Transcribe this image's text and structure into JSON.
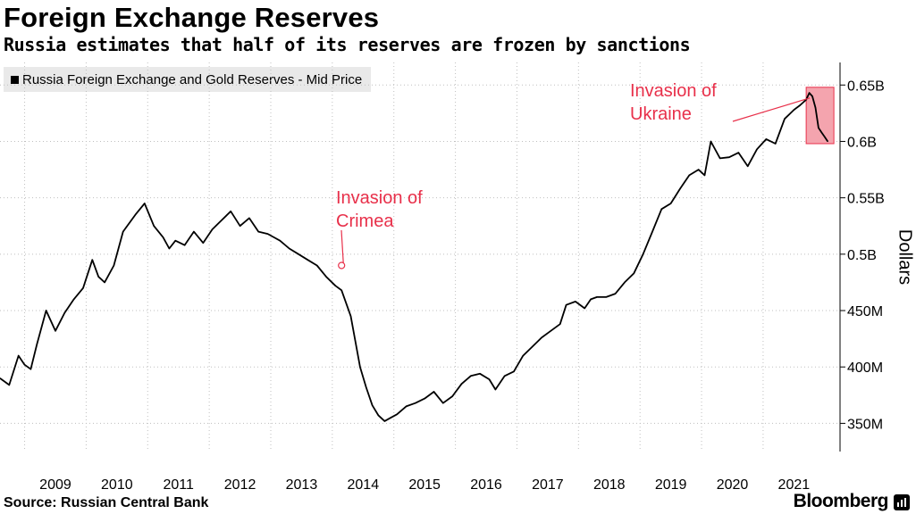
{
  "header": {
    "title": "Foreign Exchange Reserves",
    "subtitle": "Russia estimates that half of its reserves are frozen by sanctions"
  },
  "footer": {
    "source": "Source: Russian Central Bank",
    "brand": "Bloomberg"
  },
  "colors": {
    "line": "#000000",
    "annotation": "#e8304a",
    "highlight_fill": "#f4a4ae",
    "grid": "#bfbfbf",
    "legend_bg": "#e9e9e9"
  },
  "chart_data": {
    "type": "line",
    "title": "Foreign Exchange Reserves",
    "subtitle": "Russia estimates that half of its reserves are frozen by sanctions",
    "ylabel": "Dollars",
    "xlabel": "",
    "ylim": [
      325,
      670
    ],
    "xlim": [
      2008.6,
      2022.25
    ],
    "grid": true,
    "legend": "top-left",
    "x_ticks": [
      2009,
      2010,
      2011,
      2012,
      2013,
      2014,
      2015,
      2016,
      2017,
      2018,
      2019,
      2020,
      2021
    ],
    "x_tick_labels": [
      "2009",
      "2010",
      "2011",
      "2012",
      "2013",
      "2014",
      "2015",
      "2016",
      "2017",
      "2018",
      "2019",
      "2020",
      "2021"
    ],
    "y_ticks": [
      350,
      400,
      450,
      500,
      550,
      600,
      650
    ],
    "y_tick_labels": [
      "350M",
      "400M",
      "450M",
      "0.5B",
      "0.55B",
      "0.6B",
      "0.65B"
    ],
    "series": [
      {
        "name": "Russia Foreign Exchange and Gold Reserves - Mid Price",
        "unit": "million USD",
        "x": [
          2008.6,
          2008.75,
          2008.9,
          2009.0,
          2009.1,
          2009.2,
          2009.35,
          2009.5,
          2009.65,
          2009.8,
          2009.95,
          2010.1,
          2010.2,
          2010.3,
          2010.45,
          2010.6,
          2010.8,
          2010.95,
          2011.1,
          2011.25,
          2011.35,
          2011.45,
          2011.6,
          2011.75,
          2011.9,
          2012.05,
          2012.2,
          2012.35,
          2012.5,
          2012.65,
          2012.8,
          2012.95,
          2013.05,
          2013.15,
          2013.3,
          2013.45,
          2013.6,
          2013.75,
          2013.9,
          2014.05,
          2014.15,
          2014.3,
          2014.45,
          2014.55,
          2014.65,
          2014.75,
          2014.85,
          2014.95,
          2015.05,
          2015.2,
          2015.35,
          2015.5,
          2015.65,
          2015.8,
          2015.95,
          2016.1,
          2016.25,
          2016.4,
          2016.55,
          2016.65,
          2016.8,
          2016.95,
          2017.1,
          2017.25,
          2017.4,
          2017.55,
          2017.7,
          2017.8,
          2017.95,
          2018.1,
          2018.2,
          2018.3,
          2018.45,
          2018.6,
          2018.75,
          2018.9,
          2019.05,
          2019.2,
          2019.35,
          2019.5,
          2019.65,
          2019.8,
          2019.95,
          2020.05,
          2020.15,
          2020.3,
          2020.45,
          2020.6,
          2020.75,
          2020.9,
          2021.05,
          2021.2,
          2021.35,
          2021.5,
          2021.6,
          2021.7,
          2021.75,
          2021.8,
          2021.85,
          2021.9,
          2021.95,
          2022.0,
          2022.05
        ],
        "y": [
          390,
          384,
          410,
          402,
          398,
          420,
          450,
          432,
          448,
          460,
          470,
          495,
          480,
          475,
          490,
          520,
          535,
          545,
          525,
          515,
          505,
          512,
          508,
          520,
          510,
          522,
          530,
          538,
          525,
          532,
          520,
          518,
          515,
          512,
          505,
          500,
          495,
          490,
          480,
          472,
          468,
          445,
          400,
          382,
          366,
          357,
          352,
          355,
          358,
          365,
          368,
          372,
          378,
          368,
          374,
          385,
          392,
          394,
          389,
          380,
          392,
          396,
          410,
          418,
          426,
          432,
          438,
          455,
          458,
          452,
          460,
          462,
          462,
          465,
          475,
          483,
          500,
          520,
          540,
          545,
          558,
          570,
          575,
          570,
          600,
          585,
          586,
          590,
          578,
          593,
          602,
          598,
          620,
          628,
          632,
          637,
          643,
          640,
          630,
          612,
          608,
          604,
          600
        ]
      }
    ],
    "annotations": [
      {
        "text_lines": [
          "Invasion of",
          "Crimea"
        ],
        "x": 2014.15,
        "y": 490
      },
      {
        "text_lines": [
          "Invasion of",
          "Ukraine"
        ],
        "x": 2021.75,
        "y_range": [
          598,
          648
        ],
        "highlight_x_range": [
          2021.7,
          2022.15
        ]
      }
    ]
  }
}
